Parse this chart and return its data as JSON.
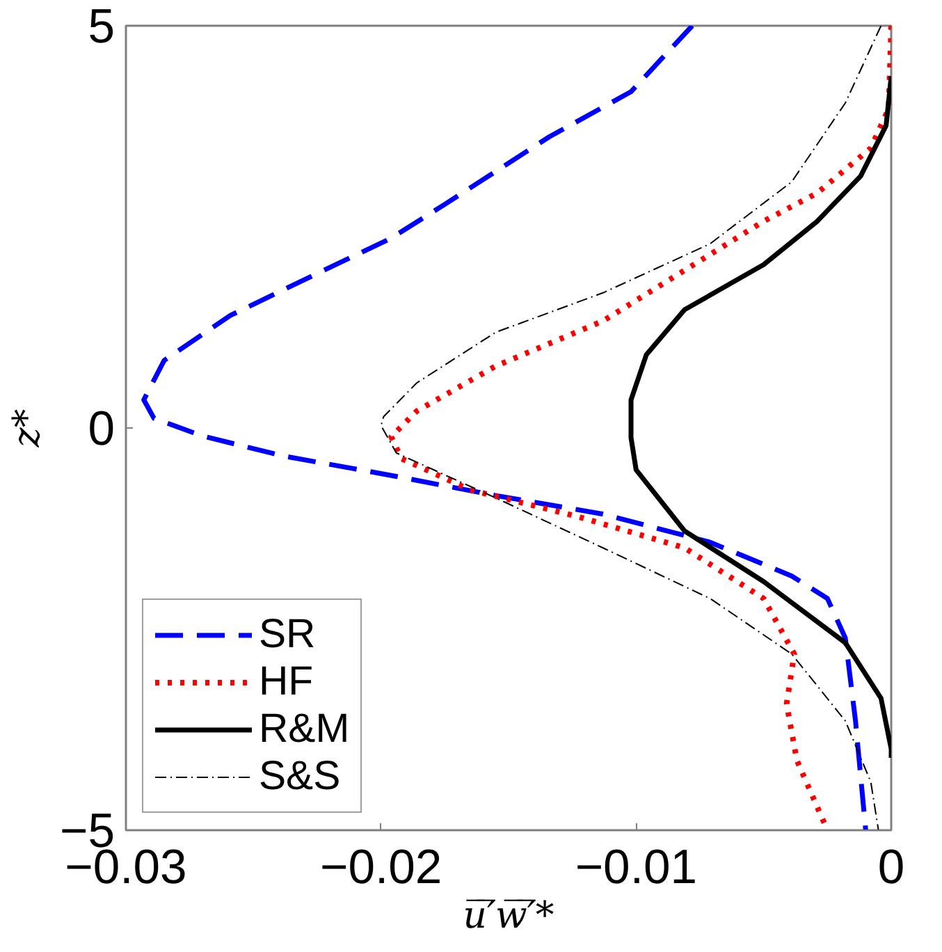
{
  "chart_data": {
    "type": "line",
    "xlabel": "u̅′̅w̅′̅*",
    "ylabel": "z*",
    "xlim": [
      -0.03,
      0
    ],
    "ylim": [
      -5,
      5
    ],
    "xticks": [
      {
        "value": -0.03,
        "label": "−0.03"
      },
      {
        "value": -0.02,
        "label": "−0.02"
      },
      {
        "value": -0.01,
        "label": "−0.01"
      },
      0
    ],
    "yticks": [
      {
        "value": -5,
        "label": "−5"
      },
      0,
      5
    ],
    "grid": false,
    "legend": "bottom left",
    "marker": "none",
    "series": [
      {
        "name": "SR",
        "color": "#0000ff",
        "line_style": "dashed",
        "x": [
          -0.0078,
          -0.0102,
          -0.0134,
          -0.0175,
          -0.0196,
          -0.0227,
          -0.0259,
          -0.0285,
          -0.0293,
          -0.0289,
          -0.027,
          -0.0238,
          -0.0196,
          -0.0155,
          -0.0113,
          -0.0071,
          -0.0039,
          -0.0025,
          -0.0018,
          -0.0014,
          -0.001
        ],
        "values": [
          5,
          4.18,
          3.62,
          2.78,
          2.36,
          1.89,
          1.4,
          0.84,
          0.35,
          0.12,
          -0.1,
          -0.35,
          -0.59,
          -0.84,
          -1.07,
          -1.42,
          -1.84,
          -2.12,
          -2.61,
          -3.64,
          -5
        ]
      },
      {
        "name": "HF",
        "color": "#ff0000",
        "line_style": "dotted",
        "x": [
          0,
          -0.0001,
          -0.0008,
          -0.0029,
          -0.005,
          -0.0081,
          -0.0113,
          -0.0155,
          -0.0186,
          -0.0196,
          -0.0192,
          -0.0165,
          -0.0123,
          -0.0081,
          -0.005,
          -0.0038,
          -0.0041,
          -0.0037,
          -0.0025
        ],
        "values": [
          5,
          3.97,
          3.48,
          2.92,
          2.57,
          1.96,
          1.33,
          0.77,
          0.21,
          -0.11,
          -0.38,
          -0.77,
          -1.1,
          -1.49,
          -2.12,
          -2.81,
          -3.43,
          -4.13,
          -5
        ]
      },
      {
        "name": "R&M",
        "color": "#000000",
        "line_style": "solid",
        "x": [
          0,
          -0.0002,
          -0.0012,
          -0.0029,
          -0.005,
          -0.0081,
          -0.0096,
          -0.0102,
          -0.0102,
          -0.01,
          -0.0081,
          -0.005,
          -0.0018,
          -0.0004,
          0,
          0
        ],
        "values": [
          4.37,
          3.76,
          3.13,
          2.57,
          2.03,
          1.47,
          0.91,
          0.35,
          -0.12,
          -0.52,
          -1.28,
          -1.91,
          -2.67,
          -3.36,
          -3.99,
          -4.1
        ]
      },
      {
        "name": "S&S",
        "color": "#000000",
        "line_style": "dashdot",
        "x": [
          -0.0004,
          -0.0018,
          -0.0039,
          -0.0071,
          -0.0113,
          -0.0155,
          -0.0186,
          -0.0199,
          -0.02,
          -0.0194,
          -0.0155,
          -0.0113,
          -0.0071,
          -0.0039,
          -0.0018,
          -0.0008,
          -0.0005
        ],
        "values": [
          5,
          4.04,
          3.06,
          2.29,
          1.68,
          1.19,
          0.56,
          0.14,
          0.03,
          -0.31,
          -0.87,
          -1.49,
          -2.12,
          -2.81,
          -3.64,
          -4.4,
          -5
        ]
      }
    ]
  }
}
